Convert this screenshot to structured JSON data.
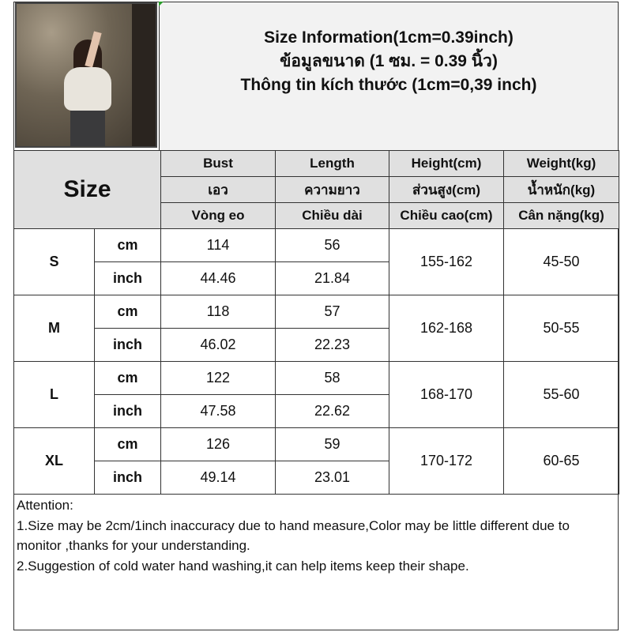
{
  "title": {
    "lines": [
      "Size Information(1cm=0.39inch)",
      "ข้อมูลขนาด (1 ซม. = 0.39 นิ้ว)",
      "Thông tin kích thước (1cm=0,39 inch)"
    ]
  },
  "photo": {
    "description_icon": "product-photo"
  },
  "table": {
    "size_header": "Size",
    "headers": [
      [
        "Bust",
        "Length",
        "Height(cm)",
        "Weight(kg)"
      ],
      [
        "เอว",
        "ความยาว",
        "ส่วนสูง(cm)",
        "น้ำหนัก(kg)"
      ],
      [
        "Vòng eo",
        "Chiều dài",
        "Chiều cao(cm)",
        "Cân nặng(kg)"
      ]
    ],
    "unit_cm": "cm",
    "unit_inch": "inch",
    "rows": [
      {
        "size": "S",
        "bust_cm": "114",
        "length_cm": "56",
        "bust_inch": "44.46",
        "length_inch": "21.84",
        "height": "155-162",
        "weight": "45-50"
      },
      {
        "size": "M",
        "bust_cm": "118",
        "length_cm": "57",
        "bust_inch": "46.02",
        "length_inch": "22.23",
        "height": "162-168",
        "weight": "50-55"
      },
      {
        "size": "L",
        "bust_cm": "122",
        "length_cm": "58",
        "bust_inch": "47.58",
        "length_inch": "22.62",
        "height": "168-170",
        "weight": "55-60"
      },
      {
        "size": "XL",
        "bust_cm": "126",
        "length_cm": "59",
        "bust_inch": "49.14",
        "length_inch": "23.01",
        "height": "170-172",
        "weight": "60-65"
      }
    ]
  },
  "notes": {
    "heading": "Attention:",
    "items": [
      "1.Size may be 2cm/1inch inaccuracy due to hand measure,Color may be little different due to monitor ,thanks for your understanding.",
      "2.Suggestion of cold water hand washing,it can help items keep their shape."
    ]
  }
}
